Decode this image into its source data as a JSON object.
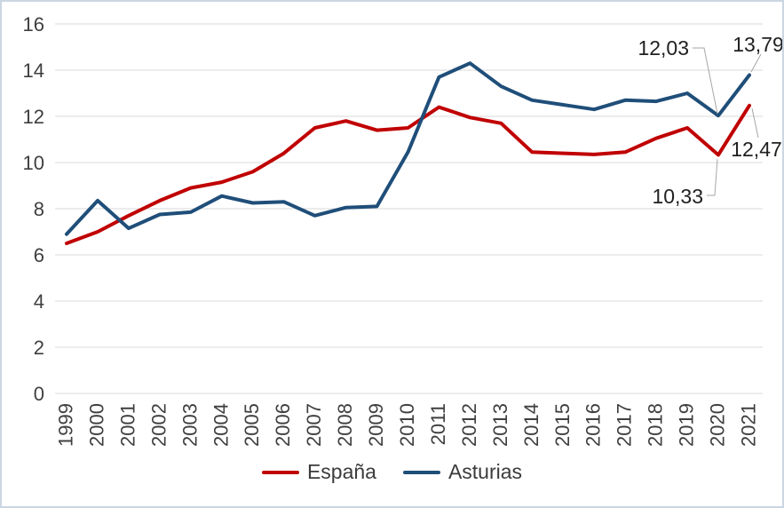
{
  "chart_data": {
    "type": "line",
    "title": "",
    "xlabel": "",
    "ylabel": "",
    "categories": [
      "1999",
      "2000",
      "2001",
      "2002",
      "2003",
      "2004",
      "2005",
      "2006",
      "2007",
      "2008",
      "2009",
      "2010",
      "2011",
      "2012",
      "2013",
      "2014",
      "2015",
      "2016",
      "2017",
      "2018",
      "2019",
      "2020",
      "2021"
    ],
    "series": [
      {
        "name": "España",
        "color": "#C00000",
        "values": [
          6.5,
          7.0,
          7.7,
          8.35,
          8.9,
          9.15,
          9.6,
          10.4,
          11.5,
          11.8,
          11.4,
          11.5,
          12.4,
          11.95,
          11.7,
          10.45,
          10.4,
          10.35,
          10.45,
          11.05,
          11.5,
          10.33,
          12.47
        ]
      },
      {
        "name": "Asturias",
        "color": "#1F4E79",
        "values": [
          6.9,
          8.35,
          7.15,
          7.75,
          7.85,
          8.55,
          8.25,
          8.3,
          7.7,
          8.05,
          8.1,
          10.45,
          13.7,
          14.3,
          13.3,
          12.7,
          12.5,
          12.3,
          12.7,
          12.65,
          13.0,
          12.03,
          13.79
        ]
      }
    ],
    "ylim": [
      0,
      16
    ],
    "yticks": [
      0,
      2,
      4,
      6,
      8,
      10,
      12,
      14,
      16
    ],
    "grid": true,
    "legend_position": "bottom",
    "annotations": [
      {
        "series": "Asturias",
        "category": "2020",
        "text": "12,03"
      },
      {
        "series": "Asturias",
        "category": "2021",
        "text": "13,79"
      },
      {
        "series": "España",
        "category": "2020",
        "text": "10,33"
      },
      {
        "series": "España",
        "category": "2021",
        "text": "12,47"
      }
    ]
  },
  "colors": {
    "background": "#FFFFFF",
    "grid": "#D9D9D9",
    "leader": "#A6A6A6",
    "frame_border": "#CCD6E2",
    "tick_text": "#3F3F3F",
    "label_text": "#1F1F1F"
  }
}
